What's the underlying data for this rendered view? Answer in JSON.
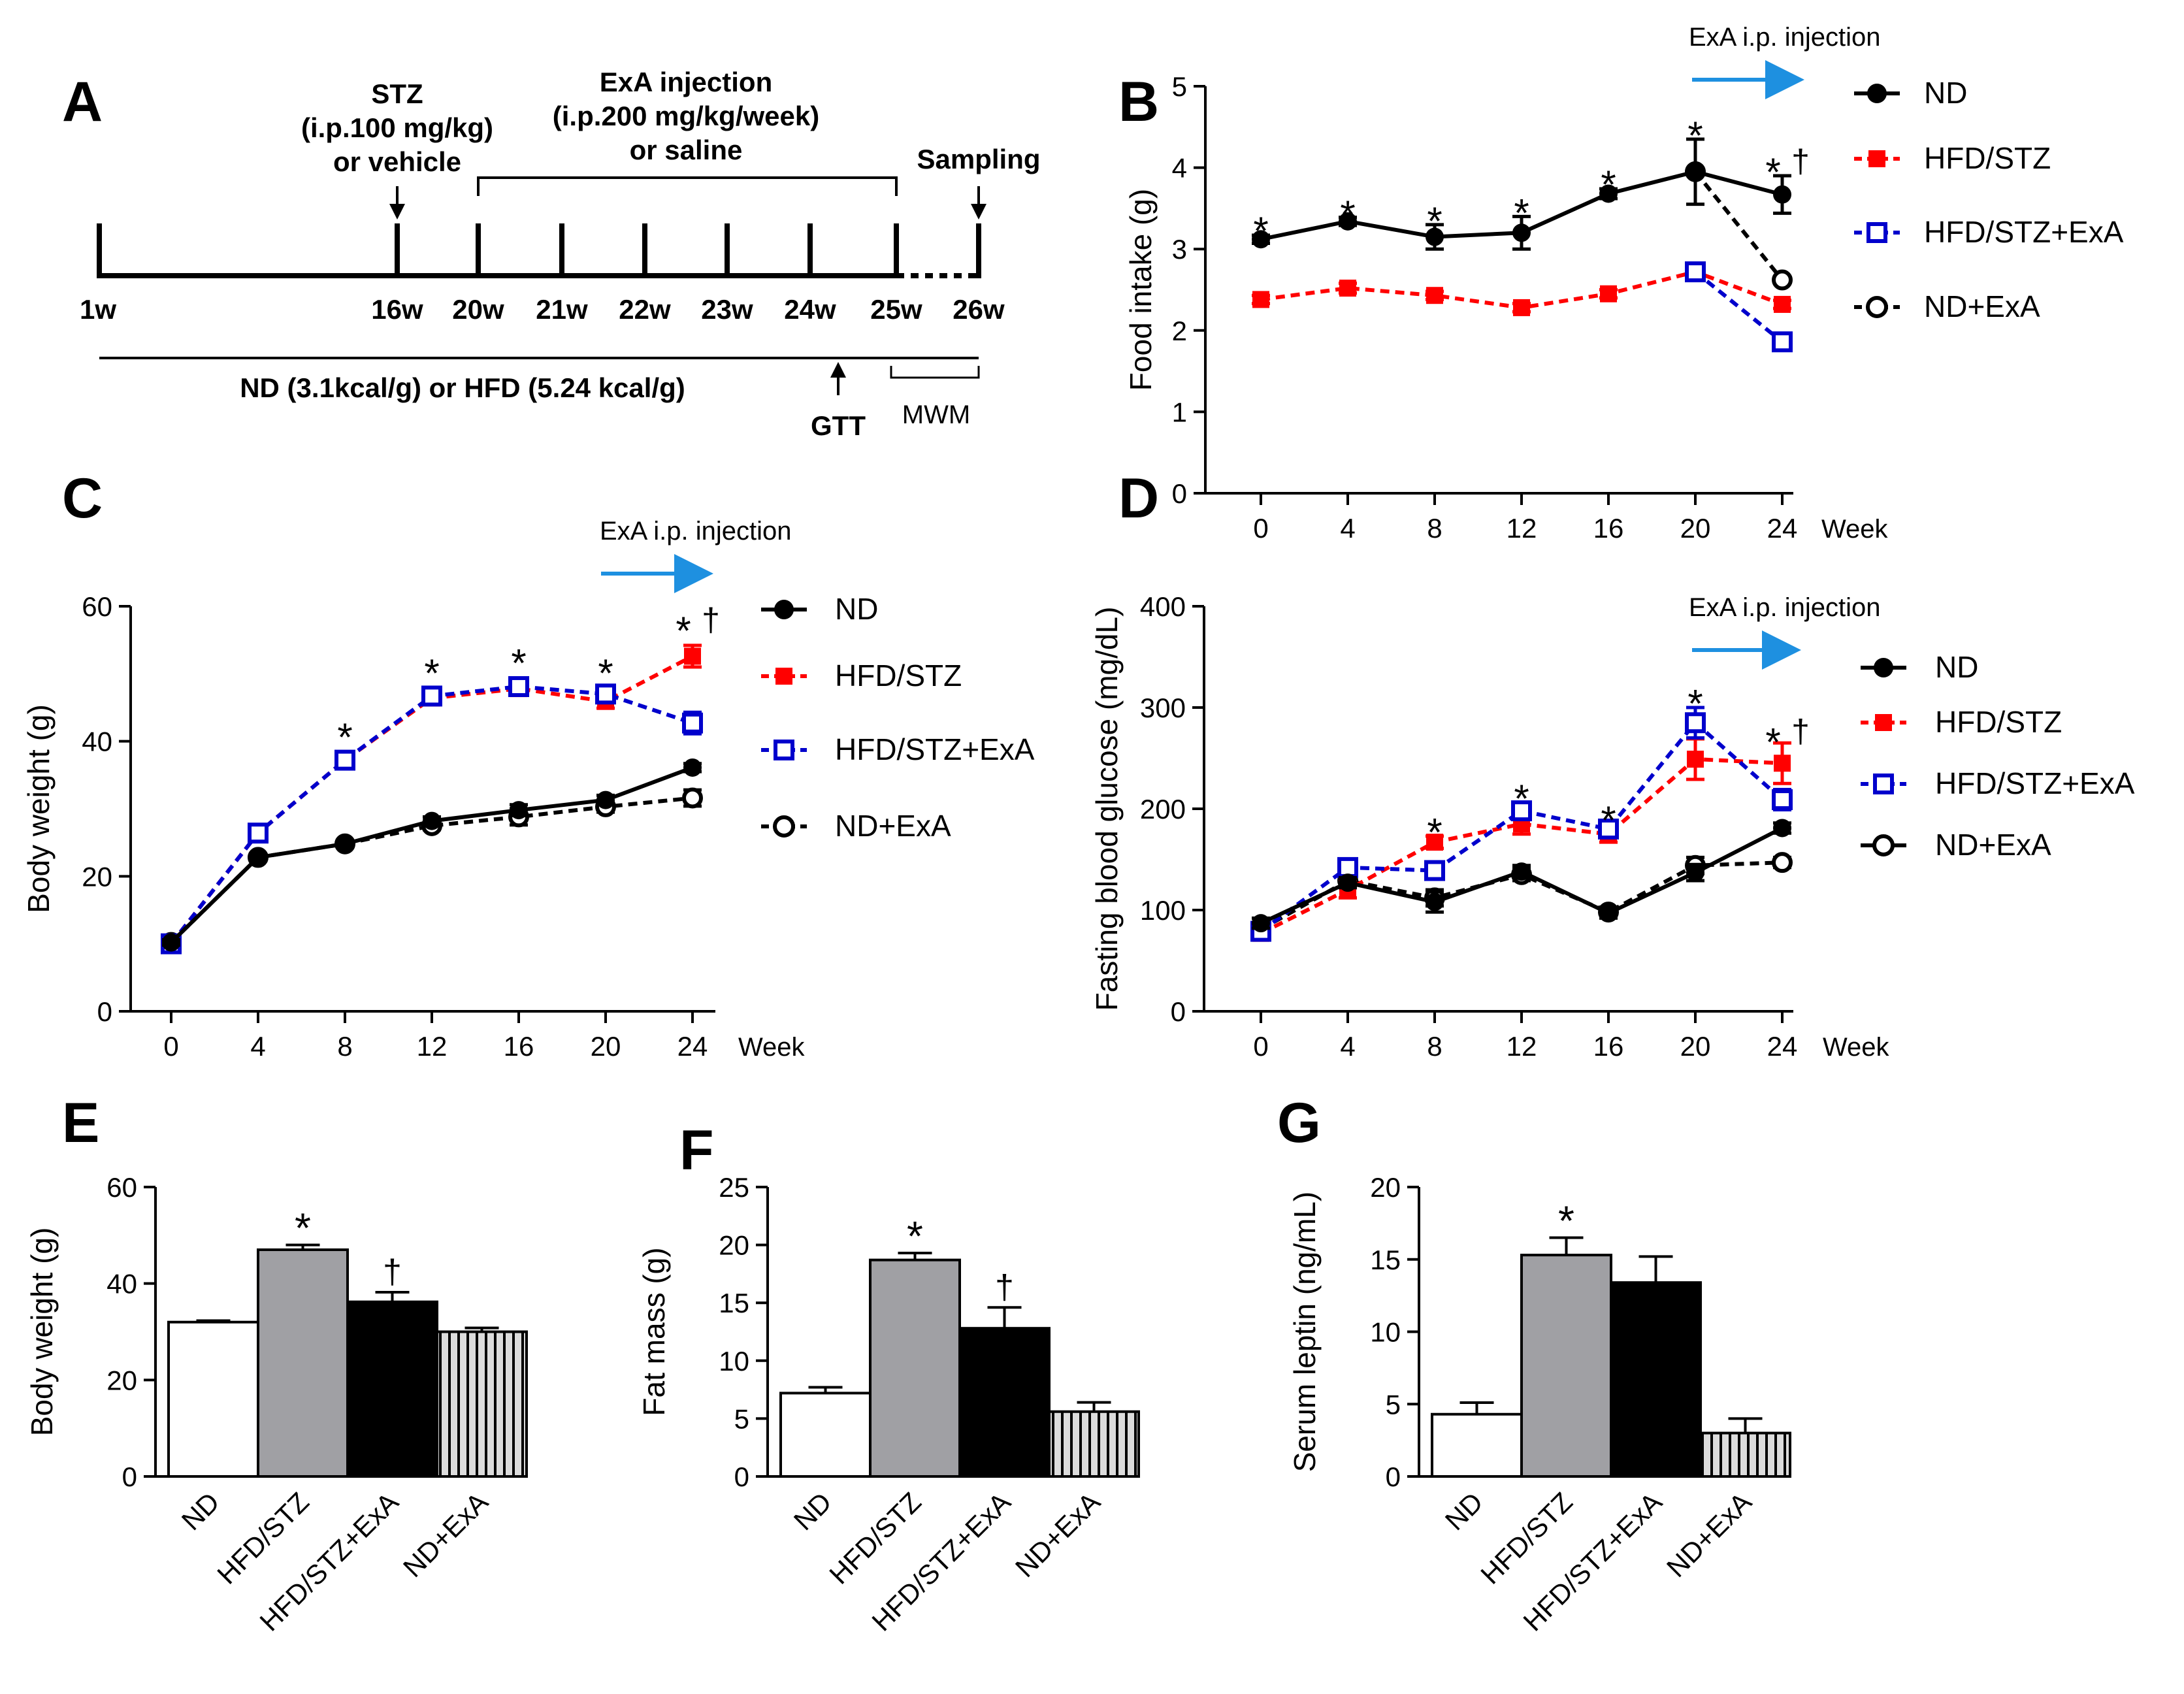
{
  "figure": {
    "panel_labels": {
      "A": "A",
      "B": "B",
      "C": "C",
      "D": "D",
      "E": "E",
      "F": "F",
      "G": "G"
    },
    "colors": {
      "nd": "#000000",
      "hfd_stz": "#ff0000",
      "hfd_stz_exa": "#0000cc",
      "nd_exa": "#000000",
      "arrow": "#1e90e0",
      "bar_gray": "#a0a0a4"
    }
  },
  "timeline": {
    "stz_line1": "STZ",
    "stz_line2": "(i.p.100 mg/kg)",
    "stz_line3": "or vehicle",
    "exa_line1": "ExA injection",
    "exa_line2": "(i.p.200 mg/kg/week)",
    "exa_line3": "or saline",
    "sampling": "Sampling",
    "weeks": [
      "1w",
      "16w",
      "20w",
      "21w",
      "22w",
      "23w",
      "24w",
      "25w",
      "26w"
    ],
    "diet": "ND (3.1kcal/g) or HFD (5.24 kcal/g)",
    "gtt": "GTT",
    "mwm": "MWM"
  },
  "legend": {
    "nd": "ND",
    "hfd_stz": "HFD/STZ",
    "hfd_stz_exa": "HFD/STZ+ExA",
    "nd_exa": "ND+ExA"
  },
  "chart_data": [
    {
      "id": "B",
      "type": "line",
      "ylabel": "Food intake (g)",
      "xlabel": "Week",
      "x": [
        0,
        4,
        8,
        12,
        16,
        20,
        24
      ],
      "ylim": [
        0,
        5
      ],
      "yticks": [
        0,
        1,
        2,
        3,
        4,
        5
      ],
      "annotation": "ExA i.p. injection",
      "series": [
        {
          "name": "ND",
          "values": [
            3.12,
            3.34,
            3.15,
            3.2,
            3.68,
            3.95,
            3.67
          ],
          "errors": [
            0.05,
            0.05,
            0.15,
            0.2,
            0.06,
            0.4,
            0.23
          ]
        },
        {
          "name": "HFD/STZ",
          "values": [
            2.38,
            2.52,
            2.43,
            2.28,
            2.45,
            2.72,
            2.32
          ],
          "errors": [
            0.05,
            0.06,
            0.05,
            0.05,
            0.05,
            0.06,
            0.05
          ]
        },
        {
          "name": "HFD/STZ+ExA",
          "values": [
            null,
            null,
            null,
            null,
            null,
            2.72,
            1.86
          ],
          "errors": [
            null,
            null,
            null,
            null,
            null,
            0.06,
            0.05
          ]
        },
        {
          "name": "ND+ExA",
          "values": [
            null,
            null,
            null,
            null,
            null,
            3.95,
            2.62
          ],
          "errors": [
            null,
            null,
            null,
            null,
            null,
            0,
            0.04
          ]
        }
      ],
      "marks": [
        {
          "text": "*",
          "x": 0,
          "y": 3.3
        },
        {
          "text": "*",
          "x": 4,
          "y": 3.5
        },
        {
          "text": "*",
          "x": 8,
          "y": 3.42
        },
        {
          "text": "*",
          "x": 12,
          "y": 3.52
        },
        {
          "text": "*",
          "x": 16,
          "y": 3.87
        },
        {
          "text": "*",
          "x": 20,
          "y": 4.47
        },
        {
          "text": "*",
          "x": 24,
          "y": 4.02
        },
        {
          "text": "†",
          "x": 24,
          "y": 4.02
        }
      ]
    },
    {
      "id": "C",
      "type": "line",
      "ylabel": "Body weight (g)",
      "xlabel": "Week",
      "x": [
        0,
        4,
        8,
        12,
        16,
        20,
        24
      ],
      "ylim": [
        0,
        60
      ],
      "yticks": [
        0,
        20,
        40,
        60
      ],
      "annotation": "ExA i.p. injection",
      "series": [
        {
          "name": "ND",
          "values": [
            10.2,
            22.8,
            24.8,
            28.2,
            29.8,
            31.3,
            36.1
          ],
          "errors": [
            0.4,
            0.5,
            0.5,
            0.6,
            0.8,
            0.7,
            0.6
          ]
        },
        {
          "name": "HFD/STZ",
          "values": [
            10.0,
            26.4,
            37.2,
            46.4,
            47.8,
            45.9,
            52.6
          ],
          "errors": [
            0.5,
            0.5,
            0.7,
            0.8,
            0.7,
            1.0,
            1.6
          ]
        },
        {
          "name": "HFD/STZ+ExA",
          "values": [
            10.0,
            26.4,
            37.2,
            46.7,
            48.1,
            47.0,
            42.7
          ],
          "errors": [
            0.5,
            0.5,
            0.7,
            0.8,
            0.7,
            1.0,
            1.6
          ]
        },
        {
          "name": "ND+ExA",
          "values": [
            10.2,
            22.8,
            24.8,
            27.5,
            28.8,
            30.3,
            31.6
          ],
          "errors": [
            0.4,
            0.5,
            0.5,
            0.6,
            1.2,
            0.8,
            1.2
          ]
        }
      ],
      "marks": [
        {
          "text": "*",
          "x": 8,
          "y": 41.5
        },
        {
          "text": "*",
          "x": 12,
          "y": 51.0
        },
        {
          "text": "*",
          "x": 16,
          "y": 52.5
        },
        {
          "text": "*",
          "x": 20,
          "y": 51.0
        },
        {
          "text": "*",
          "x": 24,
          "y": 57.3
        },
        {
          "text": "†",
          "x": 24,
          "y": 57.3
        }
      ]
    },
    {
      "id": "D",
      "type": "line",
      "ylabel": "Fasting blood glucose (mg/dL)",
      "xlabel": "Week",
      "x": [
        0,
        4,
        8,
        12,
        16,
        20,
        24
      ],
      "ylim": [
        0,
        400
      ],
      "yticks": [
        0,
        100,
        200,
        300,
        400
      ],
      "annotation": "ExA i.p. injection",
      "series": [
        {
          "name": "ND",
          "values": [
            87,
            127,
            108,
            138,
            97,
            137,
            181
          ],
          "errors": [
            5,
            5,
            10,
            6,
            5,
            8,
            5
          ]
        },
        {
          "name": "HFD/STZ",
          "values": [
            77,
            120,
            167,
            185,
            175,
            249,
            245
          ],
          "errors": [
            5,
            8,
            6,
            10,
            8,
            20,
            20
          ]
        },
        {
          "name": "HFD/STZ+ExA",
          "values": [
            79,
            142,
            139,
            198,
            180,
            285,
            209
          ],
          "errors": [
            5,
            8,
            8,
            8,
            8,
            15,
            10
          ]
        },
        {
          "name": "ND+ExA",
          "values": [
            81,
            129,
            112,
            135,
            98,
            144,
            147
          ],
          "errors": [
            5,
            5,
            8,
            6,
            5,
            8,
            5
          ]
        }
      ],
      "marks": [
        {
          "text": "*",
          "x": 8,
          "y": 183
        },
        {
          "text": "*",
          "x": 12,
          "y": 216
        },
        {
          "text": "*",
          "x": 16,
          "y": 195
        },
        {
          "text": "*",
          "x": 20,
          "y": 310
        },
        {
          "text": "*",
          "x": 24,
          "y": 272
        },
        {
          "text": "†",
          "x": 24,
          "y": 272
        }
      ]
    },
    {
      "id": "E",
      "type": "bar",
      "ylabel": "Body weight (g)",
      "categories": [
        "ND",
        "HFD/STZ",
        "HFD/STZ+ExA",
        "ND+ExA"
      ],
      "values": [
        32.0,
        47.0,
        36.2,
        30.0
      ],
      "errors": [
        0.3,
        1.0,
        2.0,
        0.8
      ],
      "ylim": [
        0,
        60
      ],
      "yticks": [
        0,
        20,
        40,
        60
      ],
      "marks": [
        "",
        "*",
        "†",
        ""
      ]
    },
    {
      "id": "F",
      "type": "bar",
      "ylabel": "Fat mass (g)",
      "categories": [
        "ND",
        "HFD/STZ",
        "HFD/STZ+ExA",
        "ND+ExA"
      ],
      "values": [
        7.2,
        18.7,
        12.8,
        5.6
      ],
      "errors": [
        0.5,
        0.6,
        1.8,
        0.8
      ],
      "ylim": [
        0,
        25
      ],
      "yticks": [
        0,
        5,
        10,
        15,
        20,
        25
      ],
      "marks": [
        "",
        "*",
        "†",
        ""
      ]
    },
    {
      "id": "G",
      "type": "bar",
      "ylabel": "Serum leptin (ng/mL)",
      "categories": [
        "ND",
        "HFD/STZ",
        "HFD/STZ+ExA",
        "ND+ExA"
      ],
      "values": [
        4.3,
        15.3,
        13.4,
        3.0
      ],
      "errors": [
        0.8,
        1.2,
        1.8,
        1.0
      ],
      "ylim": [
        0,
        20
      ],
      "yticks": [
        0,
        5,
        10,
        15,
        20
      ],
      "marks": [
        "",
        "*",
        "",
        ""
      ]
    }
  ]
}
